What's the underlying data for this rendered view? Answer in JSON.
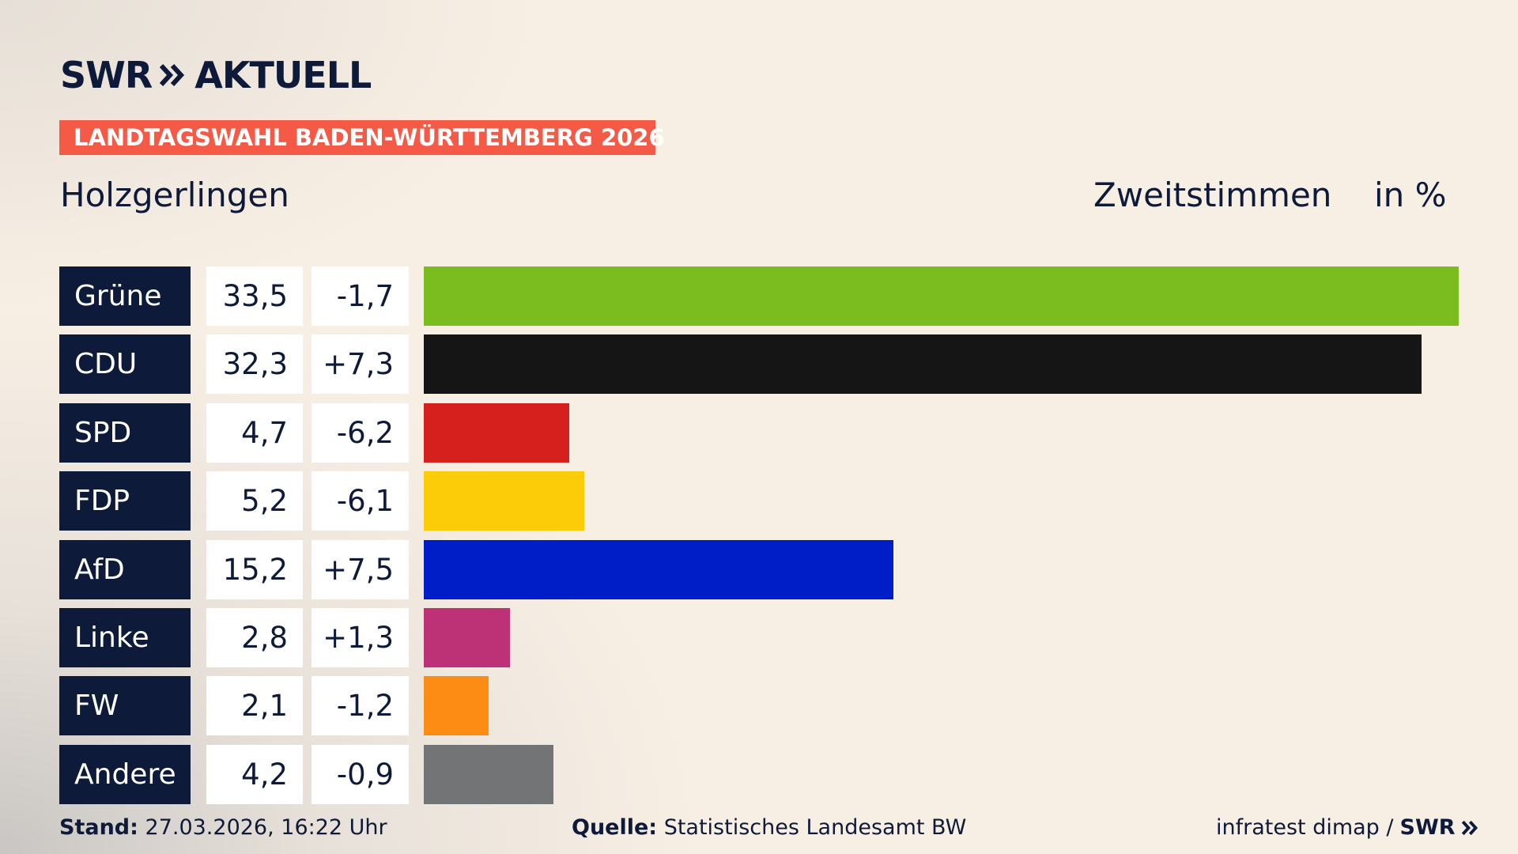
{
  "brand": {
    "name": "SWR",
    "product": "AKTUELL"
  },
  "chart_data": {
    "type": "bar",
    "title": "LANDTAGSWAHL BADEN-WÜRTTEMBERG 2026",
    "subtitle": "Holzgerlingen",
    "measure": "Zweitstimmen",
    "unit": "in %",
    "categories": [
      "Grüne",
      "CDU",
      "SPD",
      "FDP",
      "AfD",
      "Linke",
      "FW",
      "Andere"
    ],
    "values": [
      33.5,
      32.3,
      4.7,
      5.2,
      15.2,
      2.8,
      2.1,
      4.2
    ],
    "value_labels": [
      "33,5",
      "32,3",
      "4,7",
      "5,2",
      "15,2",
      "2,8",
      "2,1",
      "4,2"
    ],
    "changes": [
      "-1,7",
      "+7,3",
      "-6,2",
      "-6,1",
      "+7,5",
      "+1,3",
      "-1,2",
      "-0,9"
    ],
    "colors": [
      "#7bbd1f",
      "#151515",
      "#d6201e",
      "#fdcc08",
      "#001ec8",
      "#bd3276",
      "#fd8c15",
      "#737476"
    ]
  },
  "footer": {
    "date_label": "Stand:",
    "date": "27.03.2026, 16:22 Uhr",
    "source_label": "Quelle:",
    "source": "Statistisches Landesamt BW",
    "credit": "infratest dimap /",
    "credit_brand": "SWR"
  }
}
